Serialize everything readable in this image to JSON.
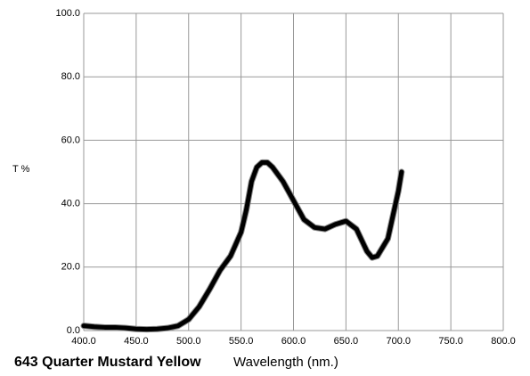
{
  "chart_data": {
    "type": "line",
    "title": "643 Quarter Mustard Yellow",
    "x_label": "Wavelength (nm.)",
    "y_label": "T %",
    "x": [
      400,
      410,
      420,
      430,
      440,
      450,
      460,
      470,
      480,
      490,
      500,
      510,
      520,
      530,
      540,
      550,
      555,
      560,
      565,
      570,
      575,
      580,
      590,
      600,
      610,
      620,
      630,
      640,
      650,
      660,
      670,
      675,
      680,
      690,
      700,
      703
    ],
    "series": [
      {
        "name": "T %",
        "color": "#000000",
        "values": [
          1.5,
          1.2,
          1.0,
          1.0,
          0.8,
          0.5,
          0.4,
          0.5,
          0.8,
          1.5,
          3.5,
          7.5,
          13,
          19,
          23.5,
          31,
          38,
          47,
          51.5,
          53,
          53,
          51.5,
          47,
          41,
          35,
          32.5,
          32,
          33.5,
          34.5,
          32,
          25,
          23,
          23.5,
          29,
          44,
          50
        ]
      }
    ],
    "xlim": [
      400,
      800
    ],
    "ylim": [
      0,
      100
    ],
    "xticks": [
      {
        "value": 400,
        "label": "400.0"
      },
      {
        "value": 450,
        "label": "450.0"
      },
      {
        "value": 500,
        "label": "500.0"
      },
      {
        "value": 550,
        "label": "550.0"
      },
      {
        "value": 600,
        "label": "600.0"
      },
      {
        "value": 650,
        "label": "650.0"
      },
      {
        "value": 700,
        "label": "700.0"
      },
      {
        "value": 750,
        "label": "750.0"
      },
      {
        "value": 800,
        "label": "800.0"
      }
    ],
    "yticks": [
      {
        "value": 0,
        "label": "0.0"
      },
      {
        "value": 20,
        "label": "20.0"
      },
      {
        "value": 40,
        "label": "40.0"
      },
      {
        "value": 60,
        "label": "60.0"
      },
      {
        "value": 80,
        "label": "80.0"
      },
      {
        "value": 100,
        "label": "100.0"
      }
    ],
    "grid": true
  }
}
